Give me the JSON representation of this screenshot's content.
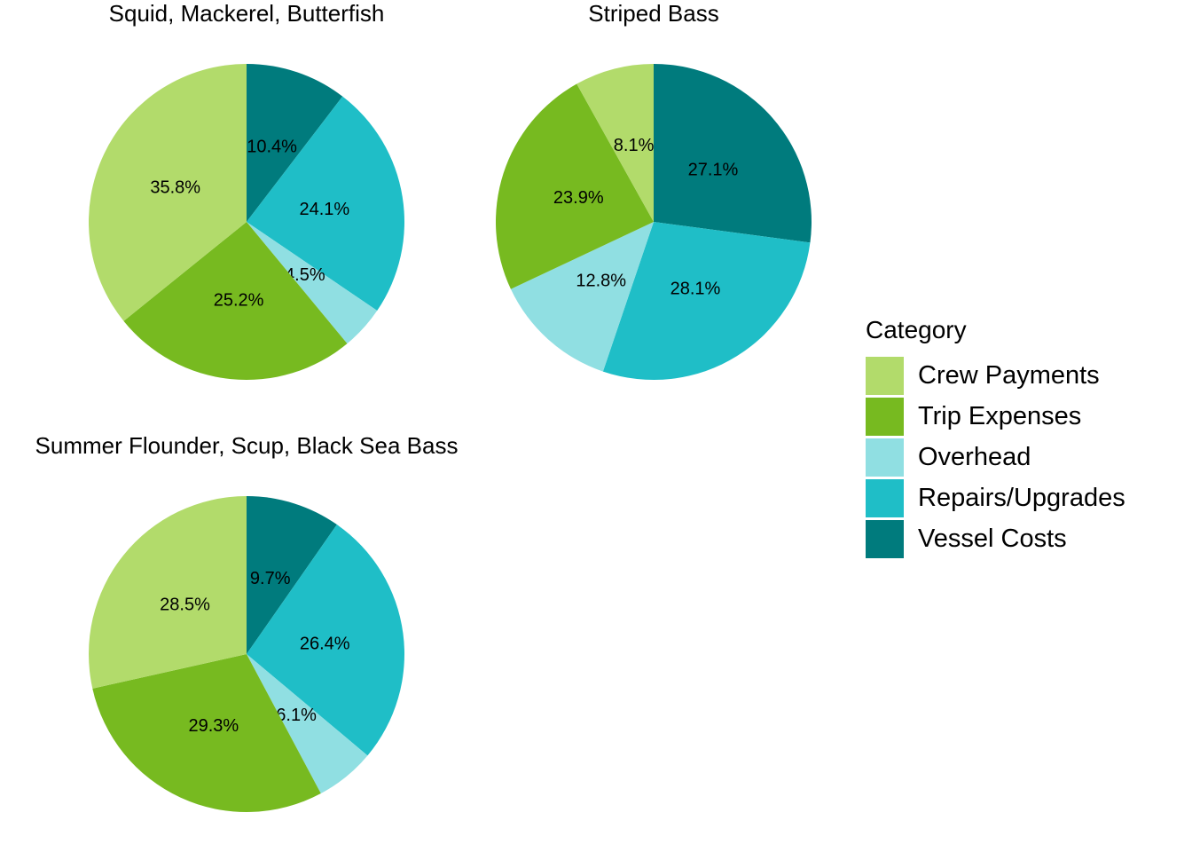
{
  "chart_data": {
    "type": "pie",
    "title": "",
    "legend": {
      "title": "Category",
      "position": "right",
      "entries": [
        {
          "label": "Crew Payments",
          "color": "#b2db6b"
        },
        {
          "label": "Trip Expenses",
          "color": "#77ba20"
        },
        {
          "label": "Overhead",
          "color": "#90dfe2"
        },
        {
          "label": "Repairs/Upgrades",
          "color": "#1fbec7"
        },
        {
          "label": "Vessel Costs",
          "color": "#007b7d"
        }
      ]
    },
    "categories": [
      "Crew Payments",
      "Trip Expenses",
      "Overhead",
      "Repairs/Upgrades",
      "Vessel Costs"
    ],
    "facets": [
      {
        "title": "Squid, Mackerel, Butterfish",
        "values": [
          35.8,
          25.2,
          4.5,
          24.1,
          10.4
        ],
        "labels": [
          "35.8%",
          "25.2%",
          "4.5%",
          "24.1%",
          "10.4%"
        ]
      },
      {
        "title": "Striped Bass",
        "values": [
          8.1,
          23.9,
          12.8,
          28.1,
          27.1
        ],
        "labels": [
          "8.1%",
          "23.9%",
          "12.8%",
          "28.1%",
          "27.1%"
        ]
      },
      {
        "title": "Summer Flounder, Scup, Black Sea Bass",
        "values": [
          28.5,
          29.3,
          6.1,
          26.4,
          9.7
        ],
        "labels": [
          "28.5%",
          "29.3%",
          "6.1%",
          "26.4%",
          "9.7%"
        ]
      }
    ]
  }
}
